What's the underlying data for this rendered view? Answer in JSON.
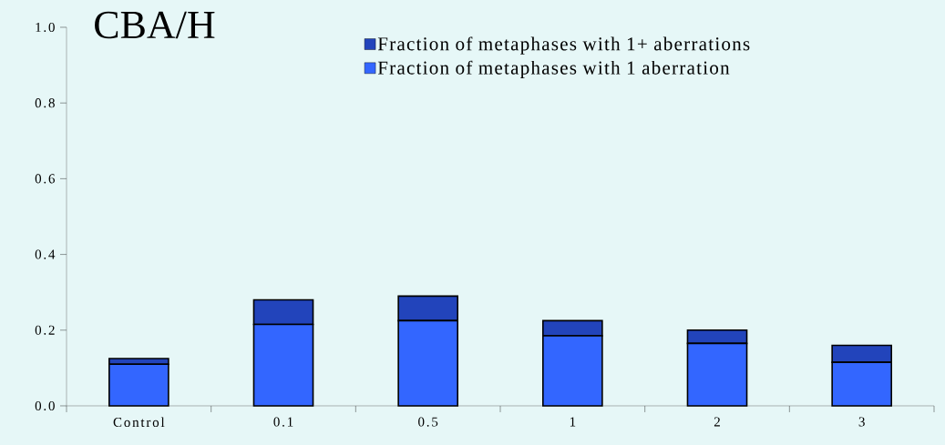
{
  "chart_data": {
    "type": "bar",
    "stacked": true,
    "title": "CBA/H",
    "categories": [
      "Control",
      "0.1",
      "0.5",
      "1",
      "2",
      "3"
    ],
    "series": [
      {
        "name": "Fraction of metaphases with 1 aberration",
        "color": "#3366ff",
        "values": [
          0.11,
          0.215,
          0.225,
          0.185,
          0.165,
          0.115
        ]
      },
      {
        "name": "Fraction of metaphases with 1+ aberrations",
        "color": "#2244bb",
        "values": [
          0.015,
          0.065,
          0.065,
          0.04,
          0.035,
          0.045
        ]
      }
    ],
    "ylim": [
      0,
      1
    ],
    "yticks": [
      {
        "value": 0,
        "label": "0.0"
      },
      {
        "value": 0.2,
        "label": "0.2"
      },
      {
        "value": 0.4,
        "label": "0.4"
      },
      {
        "value": 0.6,
        "label": "0.6"
      },
      {
        "value": 0.8,
        "label": "0.8"
      },
      {
        "value": 1,
        "label": "1.0"
      }
    ],
    "grid": false,
    "legend": "top right"
  }
}
